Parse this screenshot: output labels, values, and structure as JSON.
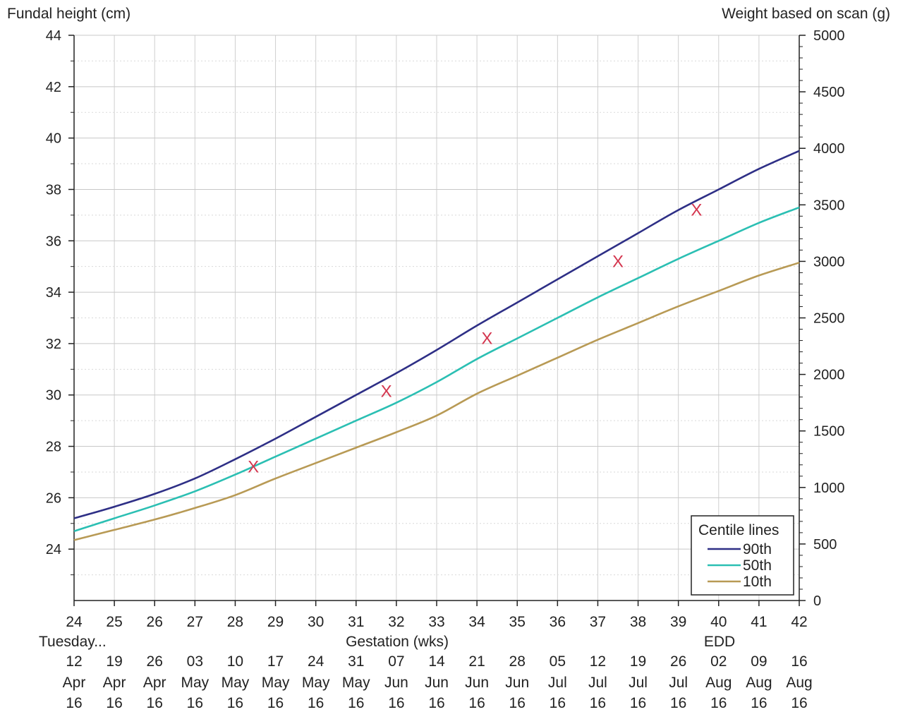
{
  "chart_data": {
    "type": "line",
    "left_axis_label": "Fundal height (cm)",
    "right_axis_label": "Weight based on scan (g)",
    "xlabel": "Gestation (wks)",
    "x_day_label": "Tuesday...",
    "edd_label": "EDD",
    "xlim": [
      24,
      42
    ],
    "ylim_left": [
      22,
      44
    ],
    "ylim_right": [
      0,
      5000
    ],
    "x_ticks": [
      24,
      25,
      26,
      27,
      28,
      29,
      30,
      31,
      32,
      33,
      34,
      35,
      36,
      37,
      38,
      39,
      40,
      41,
      42
    ],
    "left_ticks": [
      24,
      26,
      28,
      30,
      32,
      34,
      36,
      38,
      40,
      42,
      44
    ],
    "right_ticks": [
      0,
      500,
      1000,
      1500,
      2000,
      2500,
      3000,
      3500,
      4000,
      4500,
      5000
    ],
    "dates_day": [
      "12",
      "19",
      "26",
      "03",
      "10",
      "17",
      "24",
      "31",
      "07",
      "14",
      "21",
      "28",
      "05",
      "12",
      "19",
      "26",
      "02",
      "09",
      "16"
    ],
    "dates_month": [
      "Apr",
      "Apr",
      "Apr",
      "May",
      "May",
      "May",
      "May",
      "May",
      "Jun",
      "Jun",
      "Jun",
      "Jun",
      "Jul",
      "Jul",
      "Jul",
      "Jul",
      "Aug",
      "Aug",
      "Aug"
    ],
    "dates_year": [
      "16",
      "16",
      "16",
      "16",
      "16",
      "16",
      "16",
      "16",
      "16",
      "16",
      "16",
      "16",
      "16",
      "16",
      "16",
      "16",
      "16",
      "16",
      "16"
    ],
    "grid": true,
    "legend_title": "Centile lines",
    "legend_position": "bottom-right",
    "series": [
      {
        "name": "90th",
        "color": "#2e2f86",
        "x": [
          24,
          25,
          26,
          27,
          28,
          29,
          30,
          31,
          32,
          33,
          34,
          35,
          36,
          37,
          38,
          39,
          40,
          41,
          42
        ],
        "y": [
          25.2,
          25.65,
          26.15,
          26.75,
          27.5,
          28.3,
          29.15,
          30.0,
          30.85,
          31.75,
          32.7,
          33.6,
          34.5,
          35.4,
          36.3,
          37.2,
          38.0,
          38.8,
          39.5
        ]
      },
      {
        "name": "50th",
        "color": "#2bbfb3",
        "x": [
          24,
          25,
          26,
          27,
          28,
          29,
          30,
          31,
          32,
          33,
          34,
          35,
          36,
          37,
          38,
          39,
          40,
          41,
          42
        ],
        "y": [
          24.7,
          25.2,
          25.7,
          26.25,
          26.9,
          27.6,
          28.3,
          29.0,
          29.7,
          30.5,
          31.4,
          32.2,
          33.0,
          33.8,
          34.55,
          35.3,
          36.0,
          36.7,
          37.3
        ]
      },
      {
        "name": "10th",
        "color": "#b89a55",
        "x": [
          24,
          25,
          26,
          27,
          28,
          29,
          30,
          31,
          32,
          33,
          34,
          35,
          36,
          37,
          38,
          39,
          40,
          41,
          42
        ],
        "y": [
          24.35,
          24.75,
          25.15,
          25.6,
          26.1,
          26.75,
          27.35,
          27.95,
          28.55,
          29.2,
          30.05,
          30.75,
          31.45,
          32.15,
          32.8,
          33.45,
          34.05,
          34.65,
          35.15
        ]
      }
    ],
    "measurements": {
      "marker": "X",
      "color": "#d4364f",
      "x": [
        28.45,
        31.75,
        34.25,
        37.5,
        39.45
      ],
      "y": [
        27.2,
        30.15,
        32.2,
        35.2,
        37.2
      ]
    }
  }
}
